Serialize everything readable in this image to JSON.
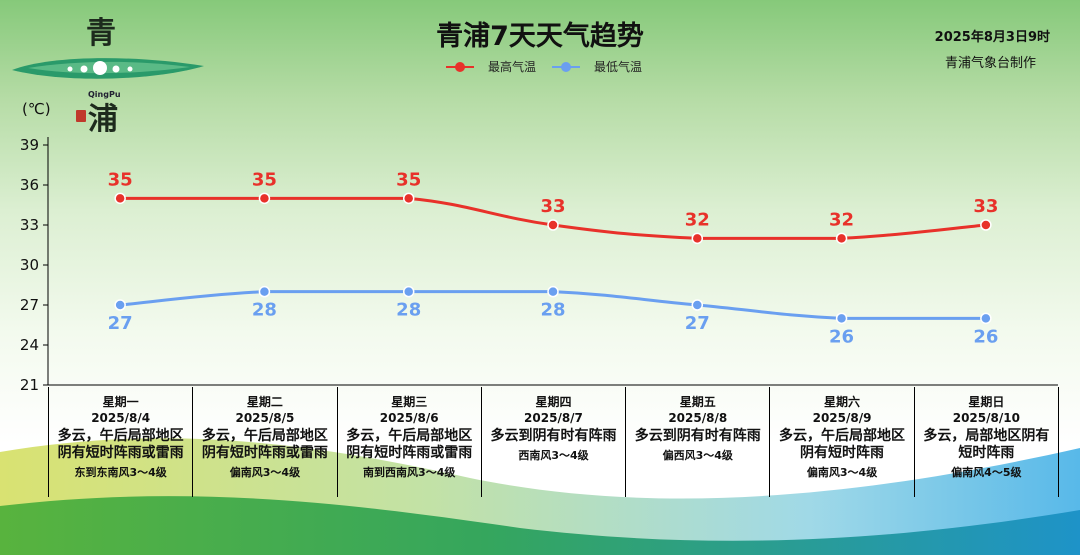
{
  "header": {
    "logo": {
      "char_top": "青",
      "char_bottom": "浦",
      "pinyin": "QingPu"
    },
    "title": "青浦7天天气趋势",
    "date": "2025年8月3日9时",
    "maker": "青浦气象台制作"
  },
  "legend": {
    "high": {
      "label": "最高气温",
      "color": "#e8312a"
    },
    "low": {
      "label": "最低气温",
      "color": "#6a9ff0"
    }
  },
  "chart_data": {
    "type": "line",
    "title": "青浦7天天气趋势",
    "ylabel": "(℃)",
    "ylim": [
      21,
      39
    ],
    "yticks": [
      21,
      24,
      27,
      30,
      33,
      36,
      39
    ],
    "categories": [
      "星期一",
      "星期二",
      "星期三",
      "星期四",
      "星期五",
      "星期六",
      "星期日"
    ],
    "series": [
      {
        "name": "最高气温",
        "color": "#e8312a",
        "values": [
          35,
          35,
          35,
          33,
          32,
          32,
          33
        ]
      },
      {
        "name": "最低气温",
        "color": "#6a9ff0",
        "values": [
          27,
          28,
          28,
          28,
          27,
          26,
          26
        ]
      }
    ],
    "grid": false,
    "legend_position": "top"
  },
  "days": [
    {
      "weekday": "星期一",
      "date": "2025/8/4",
      "weather": "多云，午后局部地区阴有短时阵雨或雷雨",
      "wind": "东到东南风3～4级"
    },
    {
      "weekday": "星期二",
      "date": "2025/8/5",
      "weather": "多云，午后局部地区阴有短时阵雨或雷雨",
      "wind": "偏南风3～4级"
    },
    {
      "weekday": "星期三",
      "date": "2025/8/6",
      "weather": "多云，午后局部地区阴有短时阵雨或雷雨",
      "wind": "南到西南风3～4级"
    },
    {
      "weekday": "星期四",
      "date": "2025/8/7",
      "weather": "多云到阴有时有阵雨",
      "wind": "西南风3～4级"
    },
    {
      "weekday": "星期五",
      "date": "2025/8/8",
      "weather": "多云到阴有时有阵雨",
      "wind": "偏西风3～4级"
    },
    {
      "weekday": "星期六",
      "date": "2025/8/9",
      "weather": "多云，午后局部地区阴有短时阵雨",
      "wind": "偏南风3～4级"
    },
    {
      "weekday": "星期日",
      "date": "2025/8/10",
      "weather": "多云，局部地区阴有短时阵雨",
      "wind": "偏南风4～5级"
    }
  ]
}
